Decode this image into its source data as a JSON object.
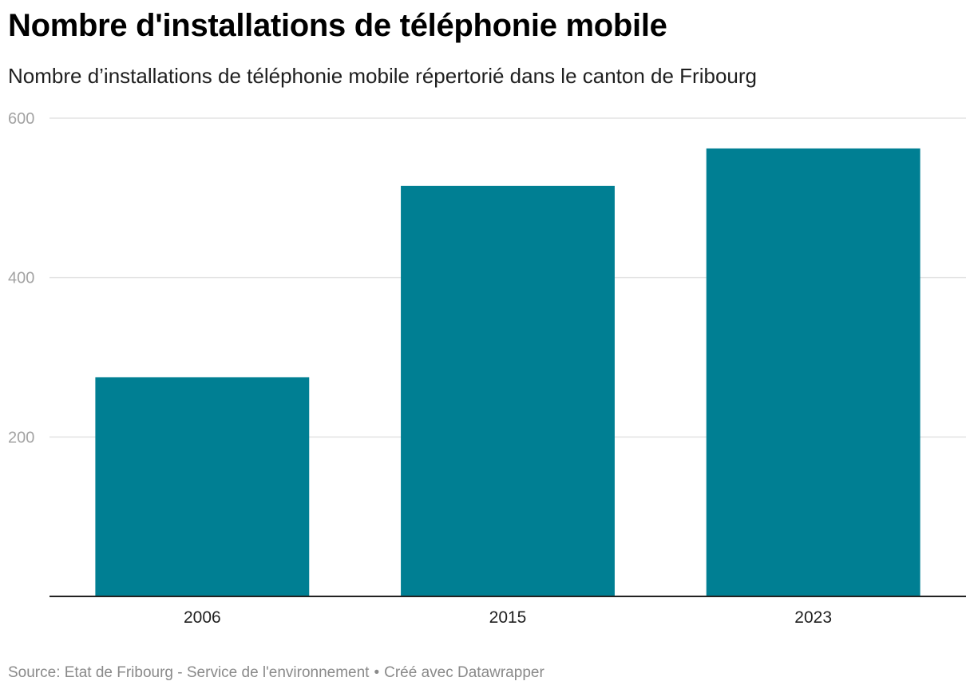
{
  "header": {
    "title": "Nombre d'installations de téléphonie mobile",
    "subtitle": "Nombre d’installations de téléphonie mobile répertorié dans le canton de Fribourg"
  },
  "footer": {
    "source": "Source: Etat de Fribourg - Service de l'environnement",
    "separator": "•",
    "credit": "Créé avec Datawrapper"
  },
  "colors": {
    "bar": "#007f93",
    "grid": "#e3e3e3",
    "baseline": "#222222"
  },
  "chart_data": {
    "type": "bar",
    "title": "Nombre d'installations de téléphonie mobile",
    "subtitle": "Nombre d’installations de téléphonie mobile répertorié dans le canton de Fribourg",
    "categories": [
      "2006",
      "2015",
      "2023"
    ],
    "values": [
      275,
      515,
      562
    ],
    "xlabel": "",
    "ylabel": "",
    "ylim": [
      0,
      600
    ],
    "yticks": [
      200,
      400,
      600
    ],
    "grid": true,
    "legend": "none"
  }
}
